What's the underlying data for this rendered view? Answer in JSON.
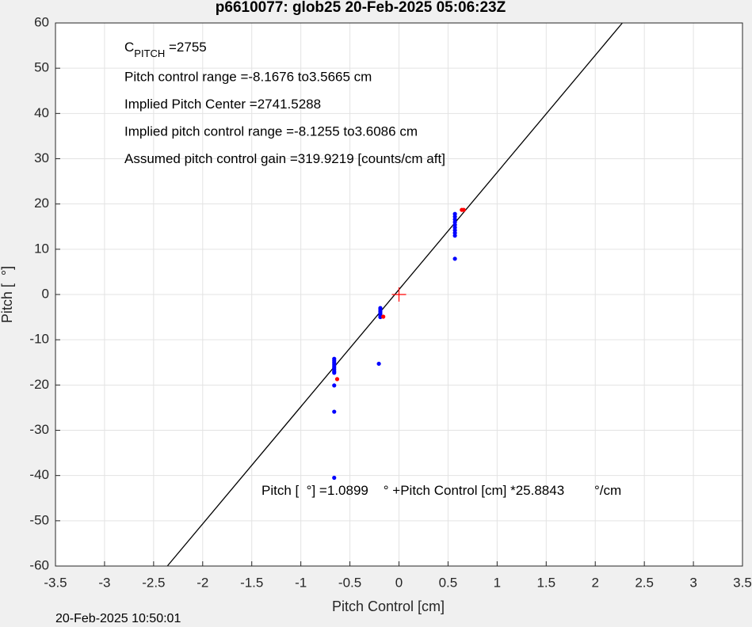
{
  "chart_data": {
    "type": "scatter",
    "title": "p6610077: glob25 20-Feb-2025 05:06:23Z",
    "x_label": "Pitch Control [cm]",
    "y_label": "Pitch [  °]",
    "timestamp": "20-Feb-2025 10:50:01",
    "xlim": [
      -3.5,
      3.5
    ],
    "ylim": [
      -60,
      60
    ],
    "xticks": [
      -3.5,
      -3,
      -2.5,
      -2,
      -1.5,
      -1,
      -0.5,
      0,
      0.5,
      1,
      1.5,
      2,
      2.5,
      3,
      3.5
    ],
    "yticks": [
      -60,
      -50,
      -40,
      -30,
      -20,
      -10,
      0,
      10,
      20,
      30,
      40,
      50,
      60
    ],
    "grid": true,
    "series": [
      {
        "color": "#0000ff",
        "marker": "dot",
        "x": [
          -0.66,
          -0.66,
          -0.66,
          -0.66,
          -0.66,
          -0.66,
          -0.66,
          -0.66,
          -0.66,
          -0.66,
          -0.66,
          -0.66,
          -0.19,
          -0.19,
          -0.19,
          -0.19,
          -0.19,
          -0.19,
          -0.205,
          0.57,
          0.57,
          0.57,
          0.57,
          0.57,
          0.57,
          0.57,
          0.57,
          0.57,
          0.57
        ],
        "y": [
          -14.2,
          -14.6,
          -15,
          -15.4,
          -15.8,
          -16.2,
          -16.6,
          -17,
          -17.3,
          -20.1,
          -25.9,
          -40.5,
          -3,
          -3.4,
          -3.8,
          -4.2,
          -4.6,
          -5,
          -15.3,
          17.8,
          17.2,
          16.6,
          16,
          15.4,
          14.8,
          14.2,
          13.6,
          13,
          7.9
        ]
      },
      {
        "color": "#ff0000",
        "marker": "dot",
        "x": [
          -0.63,
          -0.16,
          0.64,
          0.66
        ],
        "y": [
          -18.7,
          -4.9,
          18.7,
          18.7
        ]
      },
      {
        "color": "#ff0000",
        "marker": "plus",
        "x": [
          0
        ],
        "y": [
          0
        ]
      }
    ],
    "fit": {
      "intercept": 1.0899,
      "slope": 25.8843,
      "color": "#000000"
    },
    "annotations": {
      "c_pitch": {
        "symbol": "C",
        "subscript": "PITCH",
        "value": " =2755"
      },
      "lines": [
        "Pitch control range =-8.1676 to3.5665 cm",
        "Implied Pitch Center =2741.5288",
        "Implied pitch control range =-8.1255 to3.6086 cm",
        "Assumed pitch control gain =319.9219 [counts/cm aft]"
      ],
      "equation": {
        "lhs": "Pitch [  °] =",
        "mid": "    ° +Pitch Control [cm] *",
        "unit": "        °/cm"
      }
    }
  }
}
